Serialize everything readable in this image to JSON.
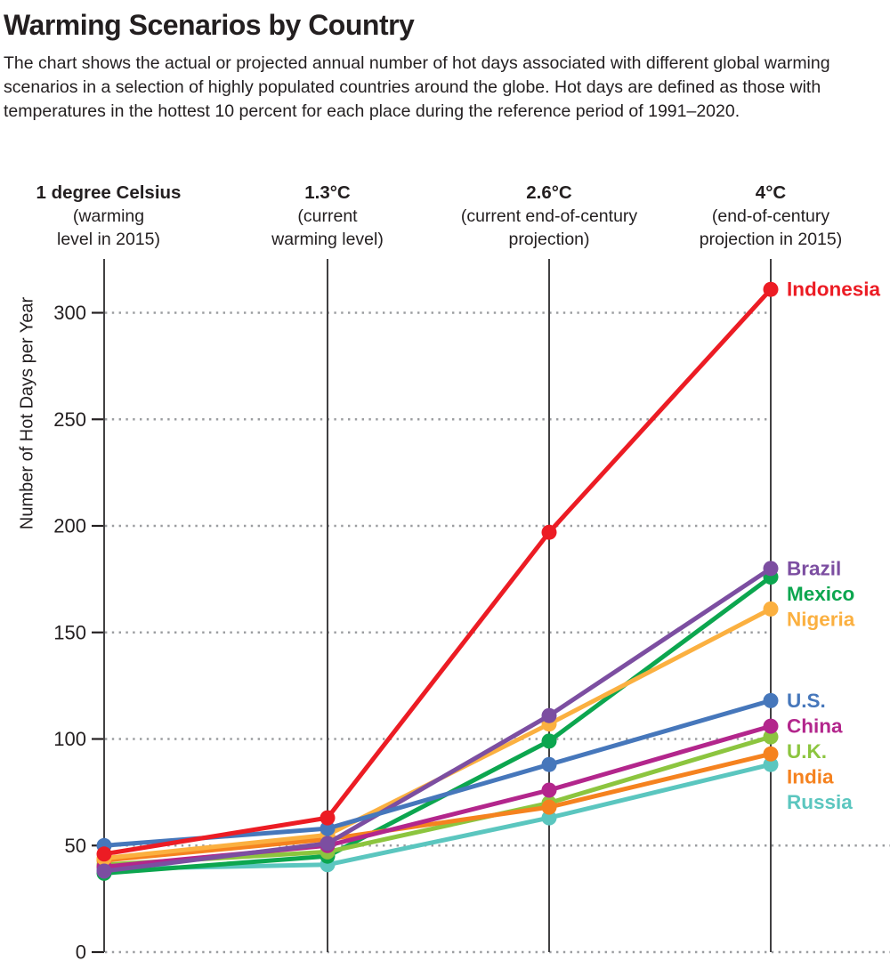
{
  "page": {
    "title": "Warming Scenarios by Country",
    "description": "The chart shows the actual or projected annual number of hot days associated with different global warming scenarios in a selection of highly populated countries around the globe. Hot days are defined as those with temperatures in the hottest 10 percent for each place during the reference period of 1991–2020."
  },
  "chart_data": {
    "type": "line",
    "title": "Warming Scenarios by Country",
    "xlabel": "",
    "ylabel": "Number of Hot Days per Year",
    "ylim": [
      0,
      325
    ],
    "yticks": [
      0,
      50,
      100,
      150,
      200,
      250,
      300
    ],
    "grid": "horizontal-dotted",
    "legend_position": "right-of-last-point",
    "categories": [
      {
        "label": "1 degree Celsius",
        "sublabel": "(warming\nlevel in 2015)"
      },
      {
        "label": "1.3°C",
        "sublabel": "(current\nwarming level)"
      },
      {
        "label": "2.6°C",
        "sublabel": "(current end-of-century\nprojection)"
      },
      {
        "label": "4°C",
        "sublabel": "(end-of-century\nprojection in 2015)"
      }
    ],
    "series": [
      {
        "name": "Indonesia",
        "color": "#ec1c24",
        "values": [
          46,
          63,
          197,
          311
        ]
      },
      {
        "name": "Brazil",
        "color": "#7c4ea1",
        "values": [
          38,
          51,
          111,
          180
        ]
      },
      {
        "name": "Mexico",
        "color": "#0ca64f",
        "values": [
          37,
          45,
          99,
          176
        ]
      },
      {
        "name": "Nigeria",
        "color": "#fbb040",
        "values": [
          44,
          55,
          107,
          161
        ]
      },
      {
        "name": "U.S.",
        "color": "#4677bb",
        "values": [
          50,
          58,
          88,
          118
        ]
      },
      {
        "name": "China",
        "color": "#b3268c",
        "values": [
          40,
          50,
          76,
          106
        ]
      },
      {
        "name": "U.K.",
        "color": "#8cc53f",
        "values": [
          41,
          47,
          70,
          101
        ]
      },
      {
        "name": "India",
        "color": "#f5821f",
        "values": [
          43,
          53,
          68,
          93
        ]
      },
      {
        "name": "Russia",
        "color": "#5bc6bf",
        "values": [
          39,
          41,
          63,
          88
        ]
      }
    ],
    "axis_color": "#414042",
    "grid_color": "#9b9da0",
    "text_color": "#231f20"
  }
}
